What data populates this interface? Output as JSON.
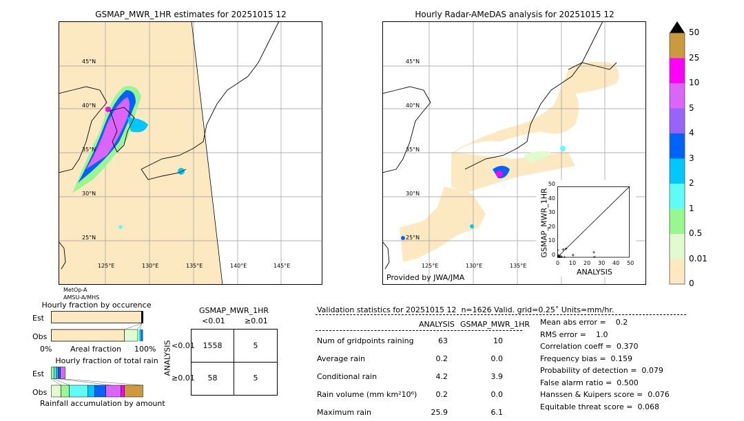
{
  "left_map": {
    "title": "GSMAP_MWR_1HR estimates for 20251015 12",
    "lat_labels": [
      "45°N",
      "40°N",
      "35°N",
      "30°N",
      "25°N"
    ],
    "lon_labels": [
      "125°E",
      "130°E",
      "135°E",
      "140°E",
      "145°E"
    ],
    "satellite": "MetOp-A",
    "sensor": "AMSU-A/MHS"
  },
  "right_map": {
    "title": "Hourly Radar-AMeDAS analysis for 20251015 12",
    "lat_labels": [
      "45°N",
      "40°N",
      "35°N",
      "30°N",
      "25°N"
    ],
    "lon_labels": [
      "125°E",
      "130°E",
      "135°E"
    ],
    "credit": "Provided by JWA/JMA"
  },
  "scatter": {
    "xlabel": "ANALYSIS",
    "ylabel": "GSMAP_MWR_1HR",
    "ticks": [
      "0",
      "10",
      "20",
      "30",
      "40",
      "50"
    ],
    "points": [
      [
        0.2,
        0.1
      ],
      [
        0.5,
        0.3
      ],
      [
        1,
        0.5
      ],
      [
        1.5,
        0.2
      ],
      [
        2,
        1
      ],
      [
        3,
        0.3
      ],
      [
        4,
        5.5
      ],
      [
        6,
        6
      ],
      [
        0.3,
        5
      ],
      [
        11,
        1.5
      ],
      [
        25.5,
        3.5
      ],
      [
        25.9,
        0.2
      ],
      [
        0.5,
        1.5
      ],
      [
        2,
        0.1
      ],
      [
        5,
        0.1
      ]
    ]
  },
  "colorbar": {
    "labels": [
      "0",
      "0.01",
      "0.5",
      "1",
      "2",
      "3",
      "4",
      "5",
      "10",
      "25",
      "50"
    ],
    "colors": [
      "#fde9c1",
      "#e0fbd0",
      "#98f890",
      "#5efcf8",
      "#00c8fc",
      "#0064fc",
      "#9664fa",
      "#dc64fa",
      "#fc00fc",
      "#cc9a3c"
    ],
    "extend_color": "#000000"
  },
  "occurrence": {
    "title": "Hourly fraction by occurence",
    "est_label": "Est",
    "obs_label": "Obs",
    "axis_left": "0%",
    "axis_mid": "Areal fraction",
    "axis_right": "100%"
  },
  "total_rain": {
    "title": "Hourly fraction of total rain",
    "est_label": "Est",
    "obs_label": "Obs",
    "footer": "Rainfall accumulation by amount"
  },
  "contingency": {
    "title": "GSMAP_MWR_1HR",
    "col_labels": [
      "<0.01",
      "≥0.01"
    ],
    "row_axis": "ANALYSIS",
    "row_labels": [
      "<0.01",
      "≥0.01"
    ],
    "cells": [
      [
        "1558",
        "5"
      ],
      [
        "58",
        "5"
      ]
    ]
  },
  "stats": {
    "header": "Validation statistics for 20251015 12  n=1626 Valid. grid=0.25˚ Units=mm/hr.",
    "col_analysis": "ANALYSIS",
    "col_gsmap": "GSMAP_MWR_1HR",
    "rows": [
      {
        "label": "Num of gridpoints raining",
        "analysis": "63",
        "gsmap": "10"
      },
      {
        "label": "Average rain",
        "analysis": "0.2",
        "gsmap": "0.0"
      },
      {
        "label": "Conditional rain",
        "analysis": "4.2",
        "gsmap": "3.9"
      },
      {
        "label": "Rain volume (mm km²10⁶)",
        "analysis": "0.2",
        "gsmap": "0.0"
      },
      {
        "label": "Maximum rain",
        "analysis": "25.9",
        "gsmap": "6.1"
      }
    ],
    "scores": [
      "Mean abs error =    0.2",
      "RMS error =    1.0",
      "Correlation coeff =  0.370",
      "Frequency bias =  0.159",
      "Probability of detection =  0.079",
      "False alarm ratio =  0.500",
      "Hanssen & Kuipers score =  0.076",
      "Equitable threat score =  0.068"
    ]
  }
}
